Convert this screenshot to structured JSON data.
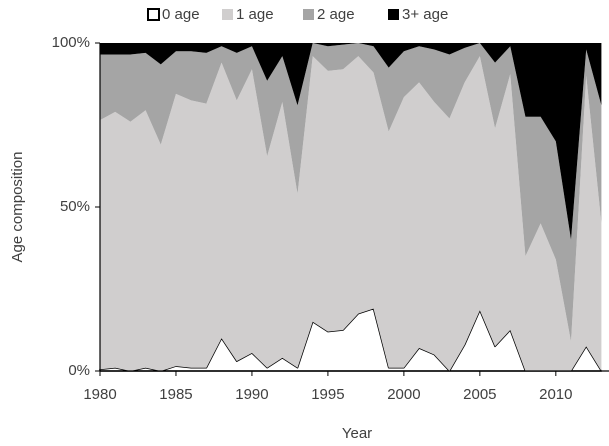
{
  "chart_data": {
    "type": "stacked_area",
    "x_label": "Year",
    "y_label": "Age composition",
    "x": [
      1980,
      1981,
      1982,
      1983,
      1984,
      1985,
      1986,
      1987,
      1988,
      1989,
      1990,
      1991,
      1992,
      1993,
      1994,
      1995,
      1996,
      1997,
      1998,
      1999,
      2000,
      2001,
      2002,
      2003,
      2004,
      2005,
      2006,
      2007,
      2008,
      2009,
      2010,
      2011,
      2012,
      2013
    ],
    "series": [
      {
        "name": "0 age",
        "color": "#ffffff",
        "values": [
          0.5,
          1,
          0,
          1,
          0,
          1.5,
          1,
          1,
          10,
          3,
          5.5,
          1,
          4,
          1,
          15,
          12,
          12.5,
          17.5,
          19,
          1,
          1,
          7,
          5,
          0,
          8,
          18.5,
          7.5,
          12.5,
          0,
          0,
          0,
          0,
          7.5,
          0
        ]
      },
      {
        "name": "1 age",
        "color": "#d0cece",
        "values": [
          76,
          78,
          76,
          78.5,
          69,
          83,
          81.5,
          80.5,
          84,
          79.5,
          86.5,
          64.5,
          78,
          53,
          81,
          79.5,
          79.5,
          78.5,
          72,
          72,
          82.5,
          81,
          77,
          77,
          80,
          77.5,
          66.5,
          78,
          35,
          45,
          34,
          9,
          82.5,
          45
        ]
      },
      {
        "name": "2 age",
        "color": "#a5a5a5",
        "values": [
          20,
          17.5,
          20.5,
          17.5,
          24.5,
          13,
          15,
          15.5,
          5,
          14.5,
          7,
          23,
          14,
          27,
          4,
          7.5,
          7.5,
          4,
          8,
          19.5,
          14,
          11,
          16,
          19.5,
          10.5,
          4,
          20,
          8.5,
          42.5,
          32.5,
          36,
          31,
          8,
          36
        ]
      },
      {
        "name": "3+ age",
        "color": "#000000",
        "values": [
          3.5,
          3.5,
          3.5,
          3,
          6.5,
          2.5,
          2.5,
          3,
          1,
          3,
          1,
          11.5,
          4,
          19,
          0,
          1,
          0.5,
          0,
          1,
          7.5,
          2.5,
          1,
          2,
          3.5,
          1.5,
          0,
          6,
          1,
          22.5,
          22.5,
          30,
          60,
          2,
          19
        ]
      }
    ],
    "xlim": [
      1980,
      2013.5
    ],
    "xticks": [
      1980,
      1985,
      1990,
      1995,
      2000,
      2005,
      2010
    ],
    "ylim": [
      0,
      100
    ],
    "yticks": [
      {
        "value": 0,
        "label": "0%"
      },
      {
        "value": 50,
        "label": "50%"
      },
      {
        "value": 100,
        "label": "100%"
      }
    ]
  }
}
